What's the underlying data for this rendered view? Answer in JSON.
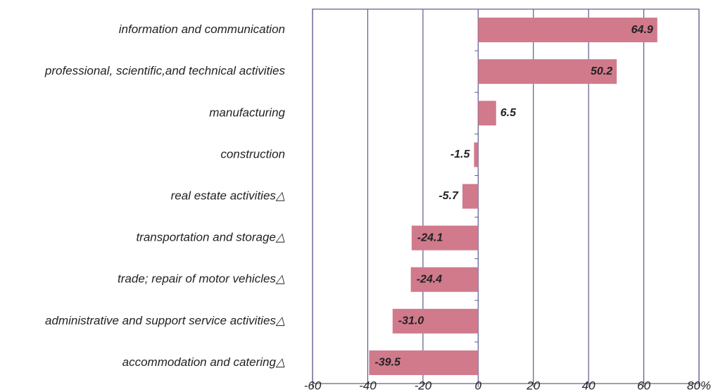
{
  "chart_data": {
    "type": "bar",
    "orientation": "horizontal",
    "categories": [
      "information and communication",
      "professional, scientific,and technical activities",
      "manufacturing",
      "construction",
      "real estate activities△",
      "transportation and storage△",
      "trade; repair of motor vehicles△",
      "administrative and support service activities△",
      "accommodation and catering△"
    ],
    "values": [
      64.9,
      50.2,
      6.5,
      -1.5,
      -5.7,
      -24.1,
      -24.4,
      -31.0,
      -39.5
    ],
    "value_labels": [
      "64.9",
      "50.2",
      "6.5",
      "-1.5",
      "-5.7",
      "-24.1",
      "-24.4",
      "-31.0",
      "-39.5"
    ],
    "color": "#d07a8c",
    "xlim": [
      -60,
      80
    ],
    "xticks": [
      -60,
      -40,
      -20,
      0,
      20,
      40,
      60,
      {
        "value": 80,
        "label": "80%"
      }
    ],
    "grid": true
  }
}
